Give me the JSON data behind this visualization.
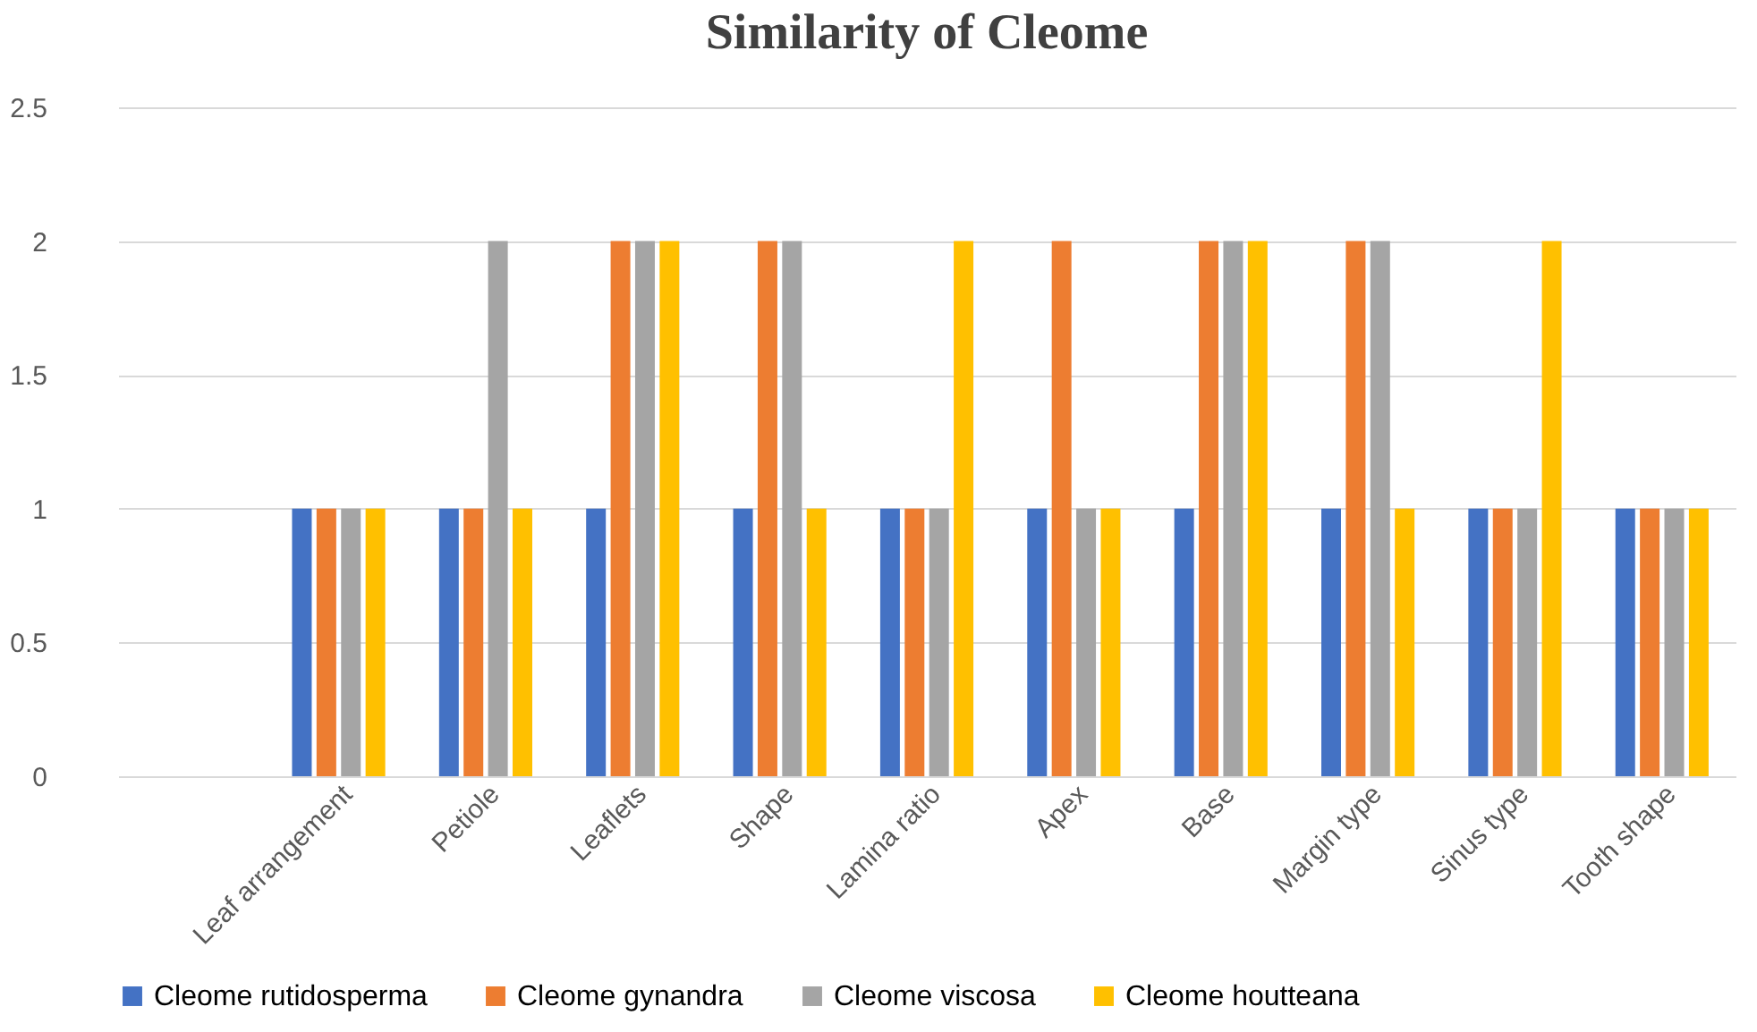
{
  "chart_data": {
    "type": "bar",
    "title": "Similarity of Cleome",
    "categories": [
      null,
      "Leaf arrangement",
      "Petiole",
      "Leaflets",
      "Shape",
      "Lamina ratio",
      "Apex",
      "Base",
      "Margin type",
      "Sinus type",
      "Tooth shape"
    ],
    "series": [
      {
        "name": "Cleome rutidosperma",
        "color": "#4472c4",
        "values": [
          null,
          1,
          1,
          1,
          1,
          1,
          1,
          1,
          1,
          1,
          1
        ]
      },
      {
        "name": "Cleome gynandra",
        "color": "#ed7d31",
        "values": [
          null,
          1,
          1,
          2,
          2,
          1,
          2,
          2,
          2,
          1,
          1
        ]
      },
      {
        "name": "Cleome viscosa",
        "color": "#a5a5a5",
        "values": [
          null,
          1,
          2,
          2,
          2,
          1,
          1,
          2,
          2,
          1,
          1
        ]
      },
      {
        "name": "Cleome houtteana",
        "color": "#ffc000",
        "values": [
          null,
          1,
          1,
          2,
          1,
          2,
          1,
          2,
          1,
          2,
          1
        ]
      }
    ],
    "ylim": [
      0,
      2.5
    ],
    "yticks": [
      0,
      0.5,
      1,
      1.5,
      2,
      2.5
    ],
    "grid": "y",
    "legend": "bottom"
  }
}
